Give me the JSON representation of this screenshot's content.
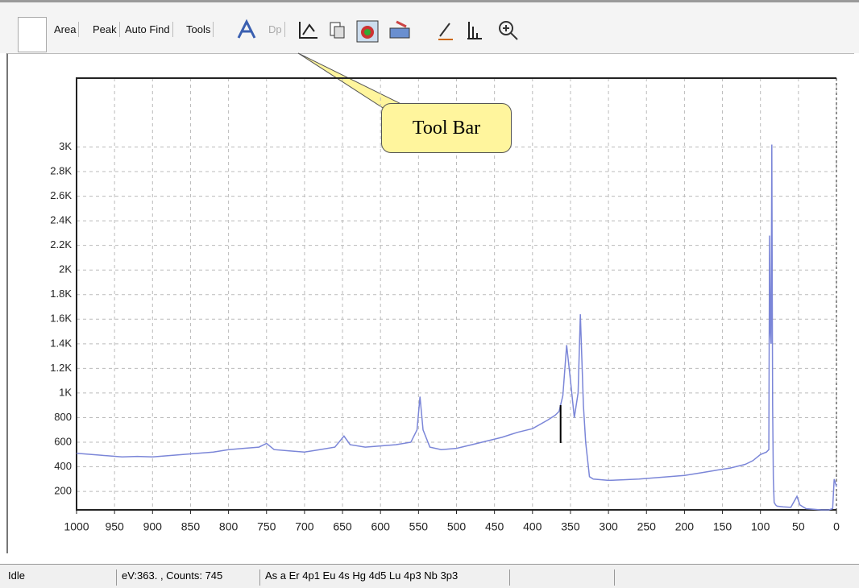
{
  "toolbar": {
    "buttons": [
      "Area",
      "Peak",
      "Auto Find",
      "Tools",
      "Dp"
    ]
  },
  "callout": "Tool Bar",
  "status_bar": [
    "Idle",
    "eV:363. , Counts: 745",
    "As a  Er 4p1  Eu 4s  Hg 4d5  Lu 4p3  Nb 3p3"
  ],
  "chart_data": {
    "type": "line",
    "x": [
      1000,
      980,
      960,
      940,
      920,
      900,
      880,
      860,
      840,
      820,
      800,
      780,
      760,
      750,
      740,
      720,
      700,
      680,
      660,
      648,
      640,
      620,
      600,
      580,
      560,
      552,
      548,
      544,
      535,
      520,
      500,
      480,
      460,
      440,
      420,
      400,
      380,
      370,
      365,
      360,
      355,
      350,
      345,
      340,
      337,
      333,
      330,
      325,
      320,
      300,
      280,
      260,
      240,
      220,
      200,
      180,
      160,
      140,
      120,
      110,
      100,
      92,
      89,
      88,
      87,
      86,
      85,
      84,
      83,
      82,
      80,
      78,
      70,
      60,
      52,
      48,
      40,
      30,
      20,
      10,
      5,
      3,
      1,
      0
    ],
    "series": [
      {
        "name": null,
        "color": "#7b86d8",
        "values": [
          510,
          500,
          490,
          480,
          485,
          480,
          490,
          500,
          510,
          520,
          540,
          550,
          560,
          590,
          540,
          530,
          520,
          540,
          560,
          650,
          580,
          560,
          570,
          580,
          600,
          700,
          970,
          700,
          560,
          540,
          550,
          580,
          610,
          640,
          680,
          710,
          780,
          820,
          850,
          980,
          1390,
          1100,
          800,
          1000,
          1640,
          900,
          600,
          320,
          300,
          290,
          295,
          300,
          310,
          320,
          330,
          350,
          370,
          390,
          420,
          450,
          500,
          520,
          540,
          2280,
          1500,
          1400,
          3020,
          900,
          300,
          110,
          90,
          80,
          75,
          70,
          160,
          90,
          60,
          55,
          50,
          50,
          60,
          300,
          260,
          240
        ]
      }
    ],
    "xlim": [
      1000,
      0
    ],
    "xticks": [
      1000,
      950,
      900,
      850,
      800,
      750,
      700,
      650,
      600,
      550,
      500,
      450,
      400,
      350,
      300,
      250,
      200,
      150,
      100,
      50,
      0
    ],
    "ylim": [
      50,
      3560
    ],
    "yticks": [
      200,
      400,
      600,
      800,
      {
        "value": 1000,
        "label": "1K"
      },
      {
        "value": 1200,
        "label": "1.2K"
      },
      {
        "value": 1400,
        "label": "1.4K"
      },
      {
        "value": 1600,
        "label": "1.6K"
      },
      {
        "value": 1800,
        "label": "1.8K"
      },
      {
        "value": 2000,
        "label": "2K"
      },
      {
        "value": 2200,
        "label": "2.2K"
      },
      {
        "value": 2400,
        "label": "2.4K"
      },
      {
        "value": 2600,
        "label": "2.6K"
      },
      {
        "value": 2800,
        "label": "2.8K"
      },
      {
        "value": 3000,
        "label": "3K"
      }
    ],
    "grid": true,
    "cursor_x": 363
  }
}
